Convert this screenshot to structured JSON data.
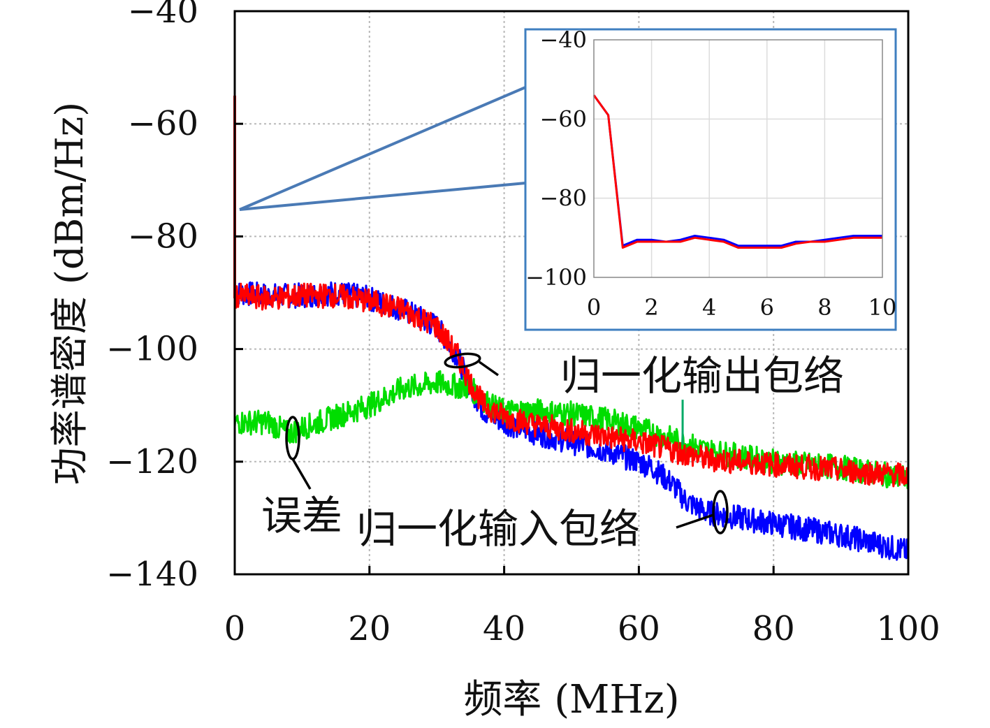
{
  "chart_data": {
    "type": "line",
    "title": "",
    "xlabel": "频率 (MHz)",
    "ylabel": "功率谱密度 (dBm/Hz)",
    "xlim": [
      0,
      100
    ],
    "ylim": [
      -140,
      -40
    ],
    "x_ticks": [
      "0",
      "20",
      "40",
      "60",
      "80",
      "100"
    ],
    "y_ticks": [
      "−40",
      "−60",
      "−80",
      "−100",
      "−120",
      "−140"
    ],
    "grid": true,
    "series": [
      {
        "name": "归一化输入包络",
        "color": "#0000ff",
        "noise_db": 2.2,
        "points": [
          [
            0,
            -90
          ],
          [
            5,
            -90.5
          ],
          [
            10,
            -90.5
          ],
          [
            15,
            -90
          ],
          [
            20,
            -91
          ],
          [
            25,
            -93
          ],
          [
            30,
            -96
          ],
          [
            33,
            -101
          ],
          [
            35,
            -107
          ],
          [
            37,
            -111
          ],
          [
            40,
            -113
          ],
          [
            45,
            -115
          ],
          [
            50,
            -116.5
          ],
          [
            55,
            -118
          ],
          [
            60,
            -120
          ],
          [
            62,
            -121
          ],
          [
            65,
            -124
          ],
          [
            67,
            -127
          ],
          [
            70,
            -129
          ],
          [
            75,
            -130
          ],
          [
            80,
            -131
          ],
          [
            85,
            -132
          ],
          [
            90,
            -133
          ],
          [
            95,
            -134.5
          ],
          [
            100,
            -136
          ]
        ]
      },
      {
        "name": "误差",
        "color": "#00dd00",
        "noise_db": 2.2,
        "points": [
          [
            0,
            -113
          ],
          [
            5,
            -113
          ],
          [
            8,
            -115
          ],
          [
            10,
            -114
          ],
          [
            15,
            -112
          ],
          [
            20,
            -110
          ],
          [
            25,
            -107
          ],
          [
            30,
            -106
          ],
          [
            35,
            -107
          ],
          [
            38,
            -110
          ],
          [
            40,
            -111
          ],
          [
            45,
            -111
          ],
          [
            50,
            -111.5
          ],
          [
            55,
            -112.5
          ],
          [
            60,
            -114
          ],
          [
            65,
            -116
          ],
          [
            70,
            -118
          ],
          [
            75,
            -119
          ],
          [
            80,
            -120
          ],
          [
            85,
            -120.5
          ],
          [
            90,
            -121
          ],
          [
            95,
            -122
          ],
          [
            100,
            -123
          ]
        ]
      },
      {
        "name": "归一化输出包络",
        "color": "#ff0000",
        "noise_db": 2.2,
        "points": [
          [
            0,
            -90.5
          ],
          [
            5,
            -91
          ],
          [
            10,
            -90.5
          ],
          [
            15,
            -90.5
          ],
          [
            20,
            -91.5
          ],
          [
            25,
            -93
          ],
          [
            30,
            -96
          ],
          [
            33,
            -101
          ],
          [
            35,
            -106
          ],
          [
            37,
            -110
          ],
          [
            40,
            -112
          ],
          [
            45,
            -113.5
          ],
          [
            50,
            -114.5
          ],
          [
            55,
            -115.5
          ],
          [
            60,
            -116.5
          ],
          [
            65,
            -118
          ],
          [
            70,
            -119.5
          ],
          [
            75,
            -120
          ],
          [
            80,
            -120.5
          ],
          [
            85,
            -121
          ],
          [
            90,
            -121.5
          ],
          [
            95,
            -122
          ],
          [
            100,
            -122.5
          ]
        ]
      }
    ],
    "annotations": [
      "归一化输出包络",
      "误差",
      "归一化输入包络"
    ],
    "inset": {
      "xlim": [
        0,
        10
      ],
      "ylim": [
        -100,
        -40
      ],
      "x_ticks": [
        "0",
        "2",
        "4",
        "6",
        "8",
        "10"
      ],
      "y_ticks": [
        "−40",
        "−60",
        "−80",
        "−100"
      ],
      "series": [
        {
          "name": "归一化输入包络",
          "color": "#0000ff",
          "points": [
            [
              0,
              -54
            ],
            [
              0.5,
              -59
            ],
            [
              1,
              -92
            ],
            [
              1.5,
              -90.5
            ],
            [
              2,
              -90.5
            ],
            [
              2.5,
              -91
            ],
            [
              3,
              -90.5
            ],
            [
              3.5,
              -89.5
            ],
            [
              4,
              -90
            ],
            [
              4.5,
              -90.5
            ],
            [
              5,
              -92
            ],
            [
              5.5,
              -92
            ],
            [
              6,
              -92
            ],
            [
              6.5,
              -92
            ],
            [
              7,
              -91
            ],
            [
              7.5,
              -91
            ],
            [
              8,
              -90.5
            ],
            [
              8.5,
              -90
            ],
            [
              9,
              -89.5
            ],
            [
              9.5,
              -89.5
            ],
            [
              10,
              -89.5
            ]
          ]
        },
        {
          "name": "归一化输出包络",
          "color": "#ff0000",
          "points": [
            [
              0,
              -54
            ],
            [
              0.5,
              -59
            ],
            [
              1,
              -92.5
            ],
            [
              1.5,
              -91
            ],
            [
              2,
              -91
            ],
            [
              2.5,
              -91
            ],
            [
              3,
              -91
            ],
            [
              3.5,
              -90
            ],
            [
              4,
              -90.5
            ],
            [
              4.5,
              -91
            ],
            [
              5,
              -92.5
            ],
            [
              5.5,
              -92.5
            ],
            [
              6,
              -92.5
            ],
            [
              6.5,
              -92.5
            ],
            [
              7,
              -91.5
            ],
            [
              7.5,
              -91
            ],
            [
              8,
              -91
            ],
            [
              8.5,
              -90.5
            ],
            [
              9,
              -90
            ],
            [
              9.5,
              -90
            ],
            [
              10,
              -90
            ]
          ]
        }
      ]
    }
  }
}
